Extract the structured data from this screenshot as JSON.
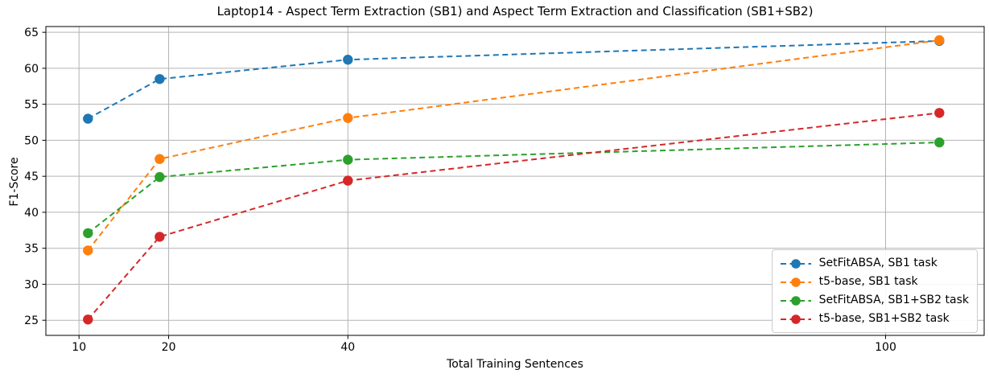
{
  "chart_data": {
    "type": "line",
    "title": "Laptop14 - Aspect Term Extraction (SB1) and Aspect Term Extraction and Classification (SB1+SB2)",
    "xlabel": "Total Training Sentences",
    "ylabel": "F1-Score",
    "x_scale": "linear",
    "grid": true,
    "legend_position": "lower right",
    "line_style": "dashed",
    "marker": "circle",
    "x_ticks": [
      10,
      20,
      40,
      100
    ],
    "y_ticks": [
      25,
      30,
      35,
      40,
      45,
      50,
      55,
      60,
      65
    ],
    "xlim": [
      6.3,
      111.0
    ],
    "ylim": [
      22.9,
      65.8
    ],
    "x": [
      11,
      19,
      40,
      106
    ],
    "series": [
      {
        "name": "SetFitABSA, SB1 task",
        "color": "#1f77b4",
        "values": [
          53.0,
          58.5,
          61.2,
          63.8
        ]
      },
      {
        "name": "t5-base, SB1 task",
        "color": "#ff7f0e",
        "values": [
          34.7,
          47.4,
          53.1,
          63.9
        ]
      },
      {
        "name": "SetFitABSA, SB1+SB2 task",
        "color": "#2ca02c",
        "values": [
          37.1,
          44.9,
          47.3,
          49.7
        ]
      },
      {
        "name": "t5-base, SB1+SB2 task",
        "color": "#d62728",
        "values": [
          25.1,
          36.6,
          44.4,
          53.8
        ]
      }
    ],
    "style": {
      "grid_color": "#b3b3b3",
      "spine_color": "#000000",
      "text_color": "#000000",
      "background": "#ffffff"
    }
  }
}
